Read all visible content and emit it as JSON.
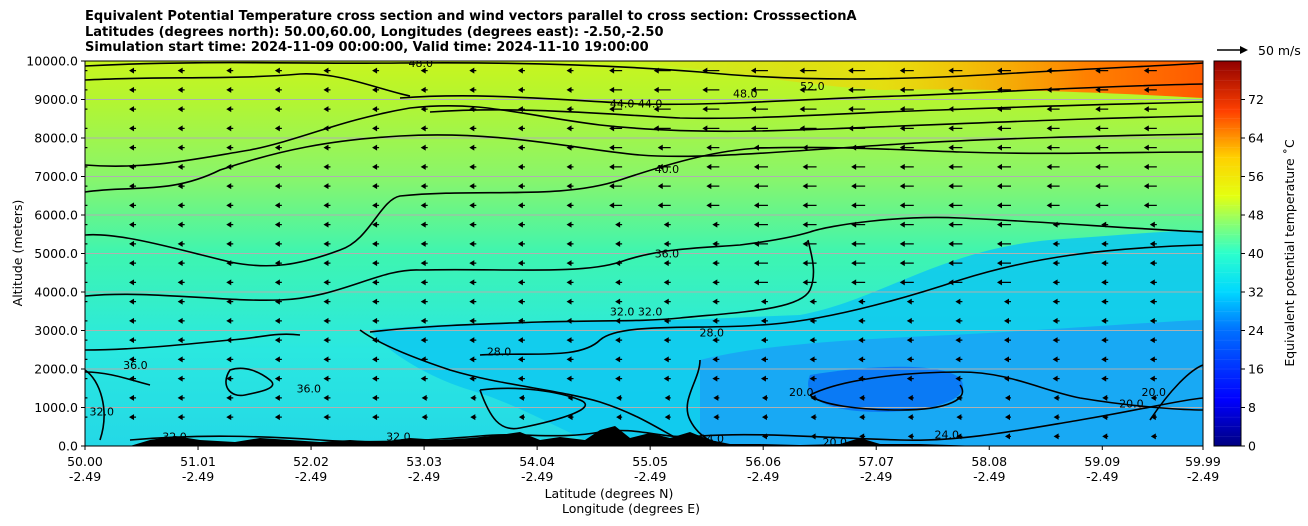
{
  "title_lines": [
    "Equivalent Potential Temperature cross section and wind vectors parallel to cross section: CrosssectionA",
    "Latitudes (degrees north): 50.00,60.00, Longitudes (degrees east): -2.50,-2.50",
    "Simulation start time: 2024-11-09 00:00:00, Valid time: 2024-11-10 19:00:00"
  ],
  "chart_data": {
    "type": "heatmap",
    "title": "Equivalent Potential Temperature cross section and wind vectors parallel to cross section: CrosssectionA",
    "xlabel": "Latitude (degrees N)",
    "xlabel2": "Longitude (degrees E)",
    "ylabel": "Altitude (meters)",
    "x_ticks": [
      {
        "lat": "50.00",
        "lon": "-2.49"
      },
      {
        "lat": "51.01",
        "lon": "-2.49"
      },
      {
        "lat": "52.02",
        "lon": "-2.49"
      },
      {
        "lat": "53.03",
        "lon": "-2.49"
      },
      {
        "lat": "54.04",
        "lon": "-2.49"
      },
      {
        "lat": "55.05",
        "lon": "-2.49"
      },
      {
        "lat": "56.06",
        "lon": "-2.49"
      },
      {
        "lat": "57.07",
        "lon": "-2.49"
      },
      {
        "lat": "58.08",
        "lon": "-2.49"
      },
      {
        "lat": "59.09",
        "lon": "-2.49"
      },
      {
        "lat": "59.99",
        "lon": "-2.49"
      }
    ],
    "xlim": [
      50.0,
      59.99
    ],
    "ylim": [
      0,
      10000
    ],
    "y_ticks": [
      "0.0",
      "1000.0",
      "2000.0",
      "3000.0",
      "4000.0",
      "5000.0",
      "6000.0",
      "7000.0",
      "8000.0",
      "9000.0",
      "10000.0"
    ],
    "grid": "horizontal",
    "colorbar": {
      "label": "Equivalent potential temperature $^\\circ$C",
      "label_display": "Equivalent potential temperature ˚C",
      "range": [
        0,
        80
      ],
      "ticks": [
        "0",
        "8",
        "16",
        "24",
        "32",
        "40",
        "48",
        "56",
        "64",
        "72"
      ]
    },
    "quiver_key": {
      "label": "50 m/s"
    },
    "contour_labels": [
      {
        "text": "48.0",
        "lat": 53.0,
        "alt": 9950
      },
      {
        "text": "52.0",
        "lat": 56.5,
        "alt": 9350
      },
      {
        "text": "48.0",
        "lat": 55.9,
        "alt": 9150
      },
      {
        "text": "44.0",
        "lat": 54.8,
        "alt": 8900
      },
      {
        "text": "44.0",
        "lat": 55.05,
        "alt": 8900
      },
      {
        "text": "40.0",
        "lat": 55.2,
        "alt": 7200
      },
      {
        "text": "36.0",
        "lat": 55.2,
        "alt": 5000
      },
      {
        "text": "32.0",
        "lat": 54.8,
        "alt": 3500
      },
      {
        "text": "32.0",
        "lat": 55.05,
        "alt": 3500
      },
      {
        "text": "28.0",
        "lat": 55.6,
        "alt": 2950
      },
      {
        "text": "28.0",
        "lat": 53.7,
        "alt": 2450
      },
      {
        "text": "36.0",
        "lat": 50.45,
        "alt": 2100
      },
      {
        "text": "36.0",
        "lat": 52.0,
        "alt": 1500
      },
      {
        "text": "32.0",
        "lat": 50.15,
        "alt": 900
      },
      {
        "text": "20.0",
        "lat": 56.4,
        "alt": 1400
      },
      {
        "text": "20.0",
        "lat": 59.55,
        "alt": 1400
      },
      {
        "text": "20.0",
        "lat": 59.35,
        "alt": 1100
      },
      {
        "text": "24.0",
        "lat": 57.7,
        "alt": 300
      },
      {
        "text": "20.0",
        "lat": 56.7,
        "alt": 100
      },
      {
        "text": "24.0",
        "lat": 55.6,
        "alt": 200
      },
      {
        "text": "32.0",
        "lat": 50.8,
        "alt": 250
      },
      {
        "text": "32.0",
        "lat": 52.8,
        "alt": 250
      },
      {
        "text": "28.0",
        "lat": 53.6,
        "alt": 100
      }
    ]
  }
}
